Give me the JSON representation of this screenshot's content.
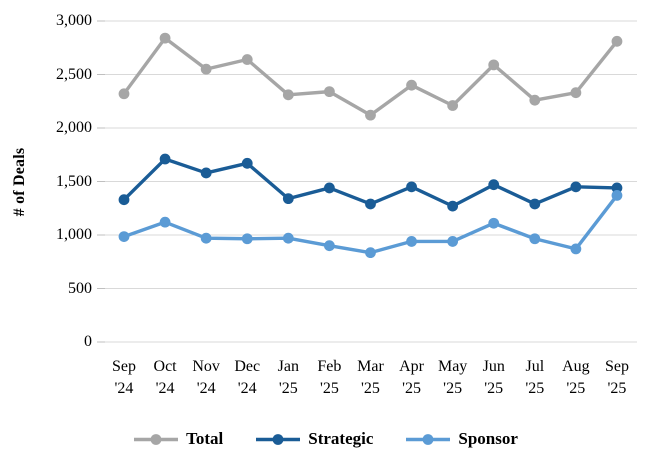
{
  "chart_data": {
    "type": "line",
    "title": "",
    "xlabel": "",
    "ylabel": "# of Deals",
    "ylim": [
      0,
      3000
    ],
    "grid": true,
    "legend_position": "bottom",
    "y_ticks": [
      {
        "label": "3,000",
        "value": 3000
      },
      {
        "label": "2,500",
        "value": 2500
      },
      {
        "label": "2,000",
        "value": 2000
      },
      {
        "label": "1,500",
        "value": 1500
      },
      {
        "label": "1,000",
        "value": 1000
      },
      {
        "label": "500",
        "value": 500
      },
      {
        "label": "0",
        "value": 0
      }
    ],
    "categories": [
      {
        "month": "Sep",
        "year": "'24"
      },
      {
        "month": "Oct",
        "year": "'24"
      },
      {
        "month": "Nov",
        "year": "'24"
      },
      {
        "month": "Dec",
        "year": "'24"
      },
      {
        "month": "Jan",
        "year": "'25"
      },
      {
        "month": "Feb",
        "year": "'25"
      },
      {
        "month": "Mar",
        "year": "'25"
      },
      {
        "month": "Apr",
        "year": "'25"
      },
      {
        "month": "May",
        "year": "'25"
      },
      {
        "month": "Jun",
        "year": "'25"
      },
      {
        "month": "Jul",
        "year": "'25"
      },
      {
        "month": "Aug",
        "year": "'25"
      },
      {
        "month": "Sep",
        "year": "'25"
      }
    ],
    "series": [
      {
        "name": "Total",
        "color": "#A6A6A6",
        "values": [
          2320,
          2840,
          2550,
          2640,
          2310,
          2340,
          2120,
          2400,
          2210,
          2590,
          2260,
          2330,
          2810
        ]
      },
      {
        "name": "Strategic",
        "color": "#1A5C96",
        "values": [
          1330,
          1710,
          1580,
          1670,
          1340,
          1440,
          1290,
          1450,
          1270,
          1470,
          1290,
          1450,
          1440
        ]
      },
      {
        "name": "Sponsor",
        "color": "#5B9BD5",
        "values": [
          985,
          1120,
          970,
          965,
          970,
          900,
          835,
          940,
          940,
          1110,
          965,
          870,
          1370
        ]
      }
    ]
  },
  "style": {
    "grid_color": "#D9D9D9",
    "tick_color": "#BFBFBF",
    "text_color": "#000000",
    "background": "#FFFFFF",
    "total_color": "#A6A6A6",
    "strategic_color": "#1A5C96",
    "sponsor_color": "#5B9BD5"
  }
}
